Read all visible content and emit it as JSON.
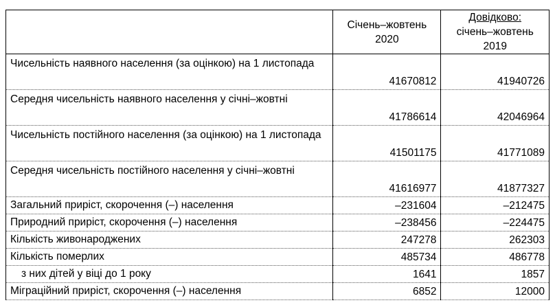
{
  "header": {
    "col1": "Січень–жовтень 2020",
    "col2_ref": "Довідково:",
    "col2": "січень–жовтень 2019"
  },
  "rows": [
    {
      "label": "Чисельність наявного населення (за оцінкою) на 1 листопада",
      "v2020": "41670812",
      "v2019": "41940726"
    },
    {
      "label": "Середня чисельність наявного населення у січні–жовтні",
      "v2020": "41786614",
      "v2019": "42046964"
    },
    {
      "label": "Чисельність постійного населення  (за оцінкою) на 1 листопада",
      "v2020": "41501175",
      "v2019": "41771089"
    },
    {
      "label": "Середня чисельність постійного населення у січні–жовтні",
      "v2020": "41616977",
      "v2019": "41877327"
    },
    {
      "label": "Загальний приріст, скорочення (–) населення",
      "v2020": "–231604",
      "v2019": "–212475"
    },
    {
      "label": "Природний приріст, скорочення (–) населення",
      "v2020": "–238456",
      "v2019": "–224475"
    },
    {
      "label": "Кількість живонароджених",
      "v2020": "247278",
      "v2019": "262303"
    },
    {
      "label": "Кількість померлих",
      "v2020": "485734",
      "v2019": "486778"
    },
    {
      "label": "з них дітей у віці до 1 року",
      "v2020": "1641",
      "v2019": "1857"
    },
    {
      "label": "Міграційний приріст, скорочення (–) населення",
      "v2020": "6852",
      "v2019": "12000"
    }
  ]
}
